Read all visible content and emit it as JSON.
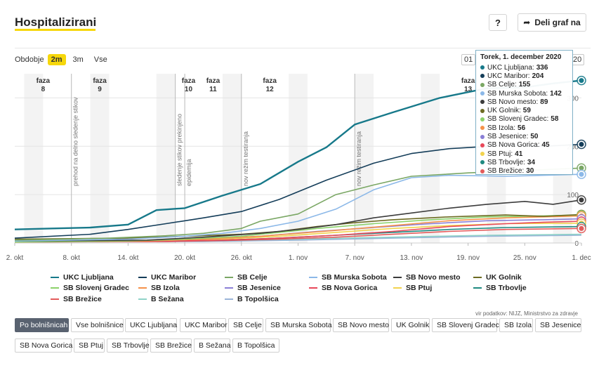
{
  "header": {
    "title": "Hospitalizirani",
    "help_label": "?",
    "share_label": "Deli graf na"
  },
  "period": {
    "label": "Obdobje",
    "options": [
      "2m",
      "3m",
      "Vse"
    ],
    "active": "2m"
  },
  "range": {
    "from_fragment": "01",
    "to_fragment": "20"
  },
  "tooltip": {
    "title": "Torek, 1. december 2020",
    "rows": [
      {
        "name": "UKC Ljubljana",
        "value": "336",
        "color": "#17798a"
      },
      {
        "name": "UKC Maribor",
        "value": "204",
        "color": "#143d59"
      },
      {
        "name": "SB Celje",
        "value": "155",
        "color": "#7aa764"
      },
      {
        "name": "SB Murska Sobota",
        "value": "142",
        "color": "#8bb8e8"
      },
      {
        "name": "SB Novo mesto",
        "value": "89",
        "color": "#3c3c3c"
      },
      {
        "name": "UK Golnik",
        "value": "59",
        "color": "#6d6b22"
      },
      {
        "name": "SB Slovenj Gradec",
        "value": "58",
        "color": "#8cd16a"
      },
      {
        "name": "SB Izola",
        "value": "56",
        "color": "#f5924a"
      },
      {
        "name": "SB Jesenice",
        "value": "50",
        "color": "#8a7fd6"
      },
      {
        "name": "SB Nova Gorica",
        "value": "45",
        "color": "#e8485a"
      },
      {
        "name": "SB Ptuj",
        "value": "41",
        "color": "#f1d34e"
      },
      {
        "name": "SB Trbovlje",
        "value": "34",
        "color": "#1f8a80"
      },
      {
        "name": "SB Brežice",
        "value": "30",
        "color": "#e35b5b"
      }
    ]
  },
  "legend": [
    {
      "name": "UKC Ljubljana",
      "color": "#17798a"
    },
    {
      "name": "UKC Maribor",
      "color": "#143d59"
    },
    {
      "name": "SB Celje",
      "color": "#7aa764"
    },
    {
      "name": "SB Murska Sobota",
      "color": "#8bb8e8"
    },
    {
      "name": "SB Novo mesto",
      "color": "#3c3c3c"
    },
    {
      "name": "UK Golnik",
      "color": "#6d6b22"
    },
    {
      "name": "SB Slovenj Gradec",
      "color": "#8cd16a"
    },
    {
      "name": "SB Izola",
      "color": "#f5924a"
    },
    {
      "name": "SB Jesenice",
      "color": "#8a7fd6"
    },
    {
      "name": "SB Nova Gorica",
      "color": "#e8485a"
    },
    {
      "name": "SB Ptuj",
      "color": "#f1d34e"
    },
    {
      "name": "SB Trbovlje",
      "color": "#1f8a80"
    },
    {
      "name": "SB Brežice",
      "color": "#e35b5b"
    },
    {
      "name": "B Sežana",
      "color": "#8fd3c8"
    },
    {
      "name": "B Topolšica",
      "color": "#9ab4d8"
    }
  ],
  "source": "vir podatkov: NIJZ, Ministrstvo za zdravje",
  "filters": [
    "Po bolnišnicah",
    "Vse bolnišnice",
    "UKC Ljubljana",
    "UKC Maribor",
    "SB Celje",
    "SB Murska Sobota",
    "SB Novo mesto",
    "UK Golnik",
    "SB Slovenj Gradec",
    "SB Izola",
    "SB Jesenice",
    "SB Nova Gorica",
    "SB Ptuj",
    "SB Trbovlje",
    "SB Brežice",
    "B Sežana",
    "B Topolšica"
  ],
  "chart_data": {
    "type": "line",
    "x_start": "2020-10-02",
    "x_end": "2020-12-01",
    "x_ticks": [
      "2. okt",
      "8. okt",
      "14. okt",
      "20. okt",
      "26. okt",
      "1. nov",
      "7. nov",
      "13. nov",
      "19. nov",
      "25. nov",
      "1. dec"
    ],
    "x_tick_dates": [
      "2020-10-02",
      "2020-10-08",
      "2020-10-14",
      "2020-10-20",
      "2020-10-26",
      "2020-11-01",
      "2020-11-07",
      "2020-11-13",
      "2020-11-19",
      "2020-11-25",
      "2020-12-01"
    ],
    "y_ticks_visible": [
      "0",
      "100",
      "200",
      "300"
    ],
    "y_tick_values": [
      0,
      100,
      200,
      300
    ],
    "ylim": [
      0,
      350
    ],
    "phases": [
      {
        "label": "faza",
        "number": "8",
        "start": "2020-10-02"
      },
      {
        "label": "faza",
        "number": "9",
        "start": "2020-10-08"
      },
      {
        "label": "faza",
        "number": "10",
        "start": "2020-10-19"
      },
      {
        "label": "faza",
        "number": "11",
        "start": "2020-10-20"
      },
      {
        "label": "faza",
        "number": "12",
        "start": "2020-10-26"
      },
      {
        "label": "faza",
        "number": "13",
        "start": "2020-11-16"
      }
    ],
    "events": [
      {
        "date": "2020-10-08",
        "label": "prehod na delno sledenje stikov"
      },
      {
        "date": "2020-10-19",
        "label": "sledenje stikov prekinjeno"
      },
      {
        "date": "2020-10-20",
        "label": "epidemija"
      },
      {
        "date": "2020-10-26",
        "label": "nov režim testiranja"
      },
      {
        "date": "2020-11-07",
        "label": "nov režim testiranja"
      }
    ],
    "series": [
      {
        "name": "UKC Ljubljana",
        "color": "#17798a",
        "points": [
          [
            0,
            28
          ],
          [
            4,
            30
          ],
          [
            8,
            32
          ],
          [
            12,
            38
          ],
          [
            15,
            68
          ],
          [
            18,
            72
          ],
          [
            22,
            98
          ],
          [
            26,
            122
          ],
          [
            30,
            168
          ],
          [
            33,
            198
          ],
          [
            36,
            245
          ],
          [
            40,
            270
          ],
          [
            45,
            300
          ],
          [
            50,
            320
          ],
          [
            54,
            322
          ],
          [
            57,
            330
          ],
          [
            60,
            336
          ]
        ]
      },
      {
        "name": "UKC Maribor",
        "color": "#143d59",
        "points": [
          [
            0,
            10
          ],
          [
            8,
            18
          ],
          [
            12,
            28
          ],
          [
            16,
            40
          ],
          [
            20,
            52
          ],
          [
            24,
            65
          ],
          [
            28,
            90
          ],
          [
            33,
            130
          ],
          [
            38,
            165
          ],
          [
            42,
            185
          ],
          [
            46,
            195
          ],
          [
            52,
            202
          ],
          [
            56,
            200
          ],
          [
            60,
            204
          ]
        ]
      },
      {
        "name": "SB Celje",
        "color": "#7aa764",
        "points": [
          [
            0,
            6
          ],
          [
            10,
            10
          ],
          [
            16,
            15
          ],
          [
            20,
            20
          ],
          [
            24,
            30
          ],
          [
            26,
            45
          ],
          [
            30,
            60
          ],
          [
            34,
            100
          ],
          [
            38,
            120
          ],
          [
            42,
            138
          ],
          [
            48,
            145
          ],
          [
            54,
            150
          ],
          [
            60,
            155
          ]
        ]
      },
      {
        "name": "SB Murska Sobota",
        "color": "#8bb8e8",
        "points": [
          [
            0,
            4
          ],
          [
            12,
            8
          ],
          [
            18,
            14
          ],
          [
            22,
            20
          ],
          [
            26,
            30
          ],
          [
            30,
            45
          ],
          [
            34,
            70
          ],
          [
            38,
            110
          ],
          [
            42,
            135
          ],
          [
            46,
            140
          ],
          [
            52,
            138
          ],
          [
            56,
            140
          ],
          [
            60,
            142
          ]
        ]
      },
      {
        "name": "SB Novo mesto",
        "color": "#3c3c3c",
        "points": [
          [
            0,
            4
          ],
          [
            14,
            6
          ],
          [
            20,
            12
          ],
          [
            26,
            20
          ],
          [
            30,
            28
          ],
          [
            34,
            38
          ],
          [
            38,
            52
          ],
          [
            42,
            62
          ],
          [
            46,
            72
          ],
          [
            50,
            80
          ],
          [
            54,
            86
          ],
          [
            57,
            80
          ],
          [
            60,
            89
          ]
        ]
      },
      {
        "name": "UK Golnik",
        "color": "#6d6b22",
        "points": [
          [
            0,
            8
          ],
          [
            12,
            10
          ],
          [
            18,
            14
          ],
          [
            24,
            18
          ],
          [
            28,
            24
          ],
          [
            32,
            34
          ],
          [
            36,
            42
          ],
          [
            40,
            48
          ],
          [
            46,
            54
          ],
          [
            52,
            58
          ],
          [
            56,
            55
          ],
          [
            60,
            59
          ]
        ]
      },
      {
        "name": "SB Slovenj Gradec",
        "color": "#8cd16a",
        "points": [
          [
            0,
            2
          ],
          [
            12,
            4
          ],
          [
            18,
            8
          ],
          [
            24,
            14
          ],
          [
            28,
            22
          ],
          [
            32,
            30
          ],
          [
            38,
            40
          ],
          [
            44,
            48
          ],
          [
            50,
            54
          ],
          [
            56,
            56
          ],
          [
            60,
            58
          ]
        ]
      },
      {
        "name": "SB Izola",
        "color": "#f5924a",
        "points": [
          [
            0,
            2
          ],
          [
            14,
            4
          ],
          [
            20,
            8
          ],
          [
            26,
            14
          ],
          [
            30,
            20
          ],
          [
            34,
            26
          ],
          [
            40,
            36
          ],
          [
            46,
            46
          ],
          [
            52,
            52
          ],
          [
            56,
            54
          ],
          [
            60,
            56
          ]
        ]
      },
      {
        "name": "SB Jesenice",
        "color": "#8a7fd6",
        "points": [
          [
            0,
            2
          ],
          [
            14,
            4
          ],
          [
            20,
            8
          ],
          [
            26,
            14
          ],
          [
            32,
            24
          ],
          [
            38,
            32
          ],
          [
            44,
            40
          ],
          [
            50,
            46
          ],
          [
            56,
            48
          ],
          [
            60,
            50
          ]
        ]
      },
      {
        "name": "SB Nova Gorica",
        "color": "#e8485a",
        "points": [
          [
            0,
            2
          ],
          [
            14,
            3
          ],
          [
            22,
            6
          ],
          [
            28,
            10
          ],
          [
            34,
            16
          ],
          [
            40,
            24
          ],
          [
            46,
            34
          ],
          [
            52,
            40
          ],
          [
            56,
            43
          ],
          [
            60,
            45
          ]
        ]
      },
      {
        "name": "SB Ptuj",
        "color": "#f1d34e",
        "points": [
          [
            0,
            2
          ],
          [
            16,
            4
          ],
          [
            22,
            8
          ],
          [
            28,
            14
          ],
          [
            34,
            22
          ],
          [
            40,
            30
          ],
          [
            46,
            36
          ],
          [
            52,
            40
          ],
          [
            60,
            41
          ]
        ]
      },
      {
        "name": "SB Trbovlje",
        "color": "#1f8a80",
        "points": [
          [
            0,
            2
          ],
          [
            16,
            4
          ],
          [
            22,
            6
          ],
          [
            28,
            10
          ],
          [
            34,
            16
          ],
          [
            40,
            22
          ],
          [
            46,
            28
          ],
          [
            52,
            32
          ],
          [
            60,
            34
          ]
        ]
      },
      {
        "name": "SB Brežice",
        "color": "#e35b5b",
        "points": [
          [
            0,
            2
          ],
          [
            16,
            3
          ],
          [
            22,
            5
          ],
          [
            28,
            8
          ],
          [
            34,
            12
          ],
          [
            40,
            18
          ],
          [
            46,
            24
          ],
          [
            52,
            28
          ],
          [
            60,
            30
          ]
        ]
      },
      {
        "name": "B Sežana",
        "color": "#8fd3c8",
        "points": [
          [
            0,
            2
          ],
          [
            20,
            4
          ],
          [
            30,
            8
          ],
          [
            40,
            12
          ],
          [
            50,
            16
          ],
          [
            60,
            18
          ]
        ]
      },
      {
        "name": "B Topolšica",
        "color": "#9ab4d8",
        "points": [
          [
            0,
            2
          ],
          [
            20,
            3
          ],
          [
            30,
            6
          ],
          [
            40,
            10
          ],
          [
            50,
            14
          ],
          [
            60,
            16
          ]
        ]
      }
    ]
  }
}
